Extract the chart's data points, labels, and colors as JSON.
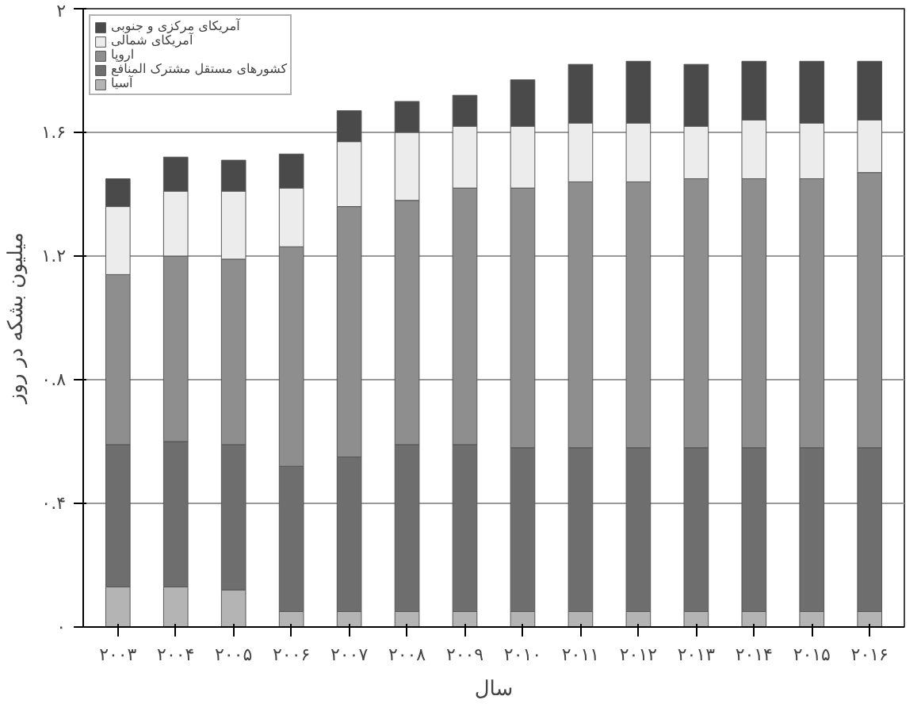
{
  "chart_data": {
    "type": "bar",
    "stacked": true,
    "xlabel": "سال",
    "ylabel": "میلیون بشکه در روز",
    "categories": [
      "۲۰۰۳",
      "۲۰۰۴",
      "۲۰۰۵",
      "۲۰۰۶",
      "۲۰۰۷",
      "۲۰۰۸",
      "۲۰۰۹",
      "۲۰۱۰",
      "۲۰۱۱",
      "۲۰۱۲",
      "۲۰۱۳",
      "۲۰۱۴",
      "۲۰۱۵",
      "۲۰۱۶"
    ],
    "series": [
      {
        "name": "آسیا",
        "color": "#b4b4b4",
        "values": [
          0.13,
          0.13,
          0.12,
          0.05,
          0.05,
          0.05,
          0.05,
          0.05,
          0.05,
          0.05,
          0.05,
          0.05,
          0.05,
          0.05
        ]
      },
      {
        "name": "کشورهای مستقل مشترک المنافع",
        "color": "#6e6e6e",
        "values": [
          0.46,
          0.47,
          0.47,
          0.47,
          0.5,
          0.54,
          0.54,
          0.53,
          0.53,
          0.53,
          0.53,
          0.53,
          0.53,
          0.53
        ]
      },
      {
        "name": "اروپا",
        "color": "#8e8e8e",
        "values": [
          0.55,
          0.6,
          0.6,
          0.71,
          0.81,
          0.79,
          0.83,
          0.84,
          0.86,
          0.86,
          0.87,
          0.87,
          0.87,
          0.89
        ]
      },
      {
        "name": "آمریکای شمالی",
        "color": "#ececec",
        "values": [
          0.22,
          0.21,
          0.22,
          0.19,
          0.21,
          0.22,
          0.2,
          0.2,
          0.19,
          0.19,
          0.17,
          0.19,
          0.18,
          0.17
        ]
      },
      {
        "name": "آمریکای مرکزی و جنوبی",
        "color": "#4a4a4a",
        "values": [
          0.09,
          0.11,
          0.1,
          0.11,
          0.1,
          0.1,
          0.1,
          0.15,
          0.19,
          0.2,
          0.2,
          0.19,
          0.2,
          0.19
        ]
      }
    ],
    "ylim": [
      0,
      2
    ],
    "yticks": [
      {
        "value": 0,
        "label": "۰"
      },
      {
        "value": 0.4,
        "label": "۰.۴"
      },
      {
        "value": 0.8,
        "label": "۰.۸"
      },
      {
        "value": 1.2,
        "label": "۱.۲"
      },
      {
        "value": 1.6,
        "label": "۱.۶"
      },
      {
        "value": 2,
        "label": "۲"
      }
    ],
    "grid": "y",
    "legend": "top left"
  }
}
